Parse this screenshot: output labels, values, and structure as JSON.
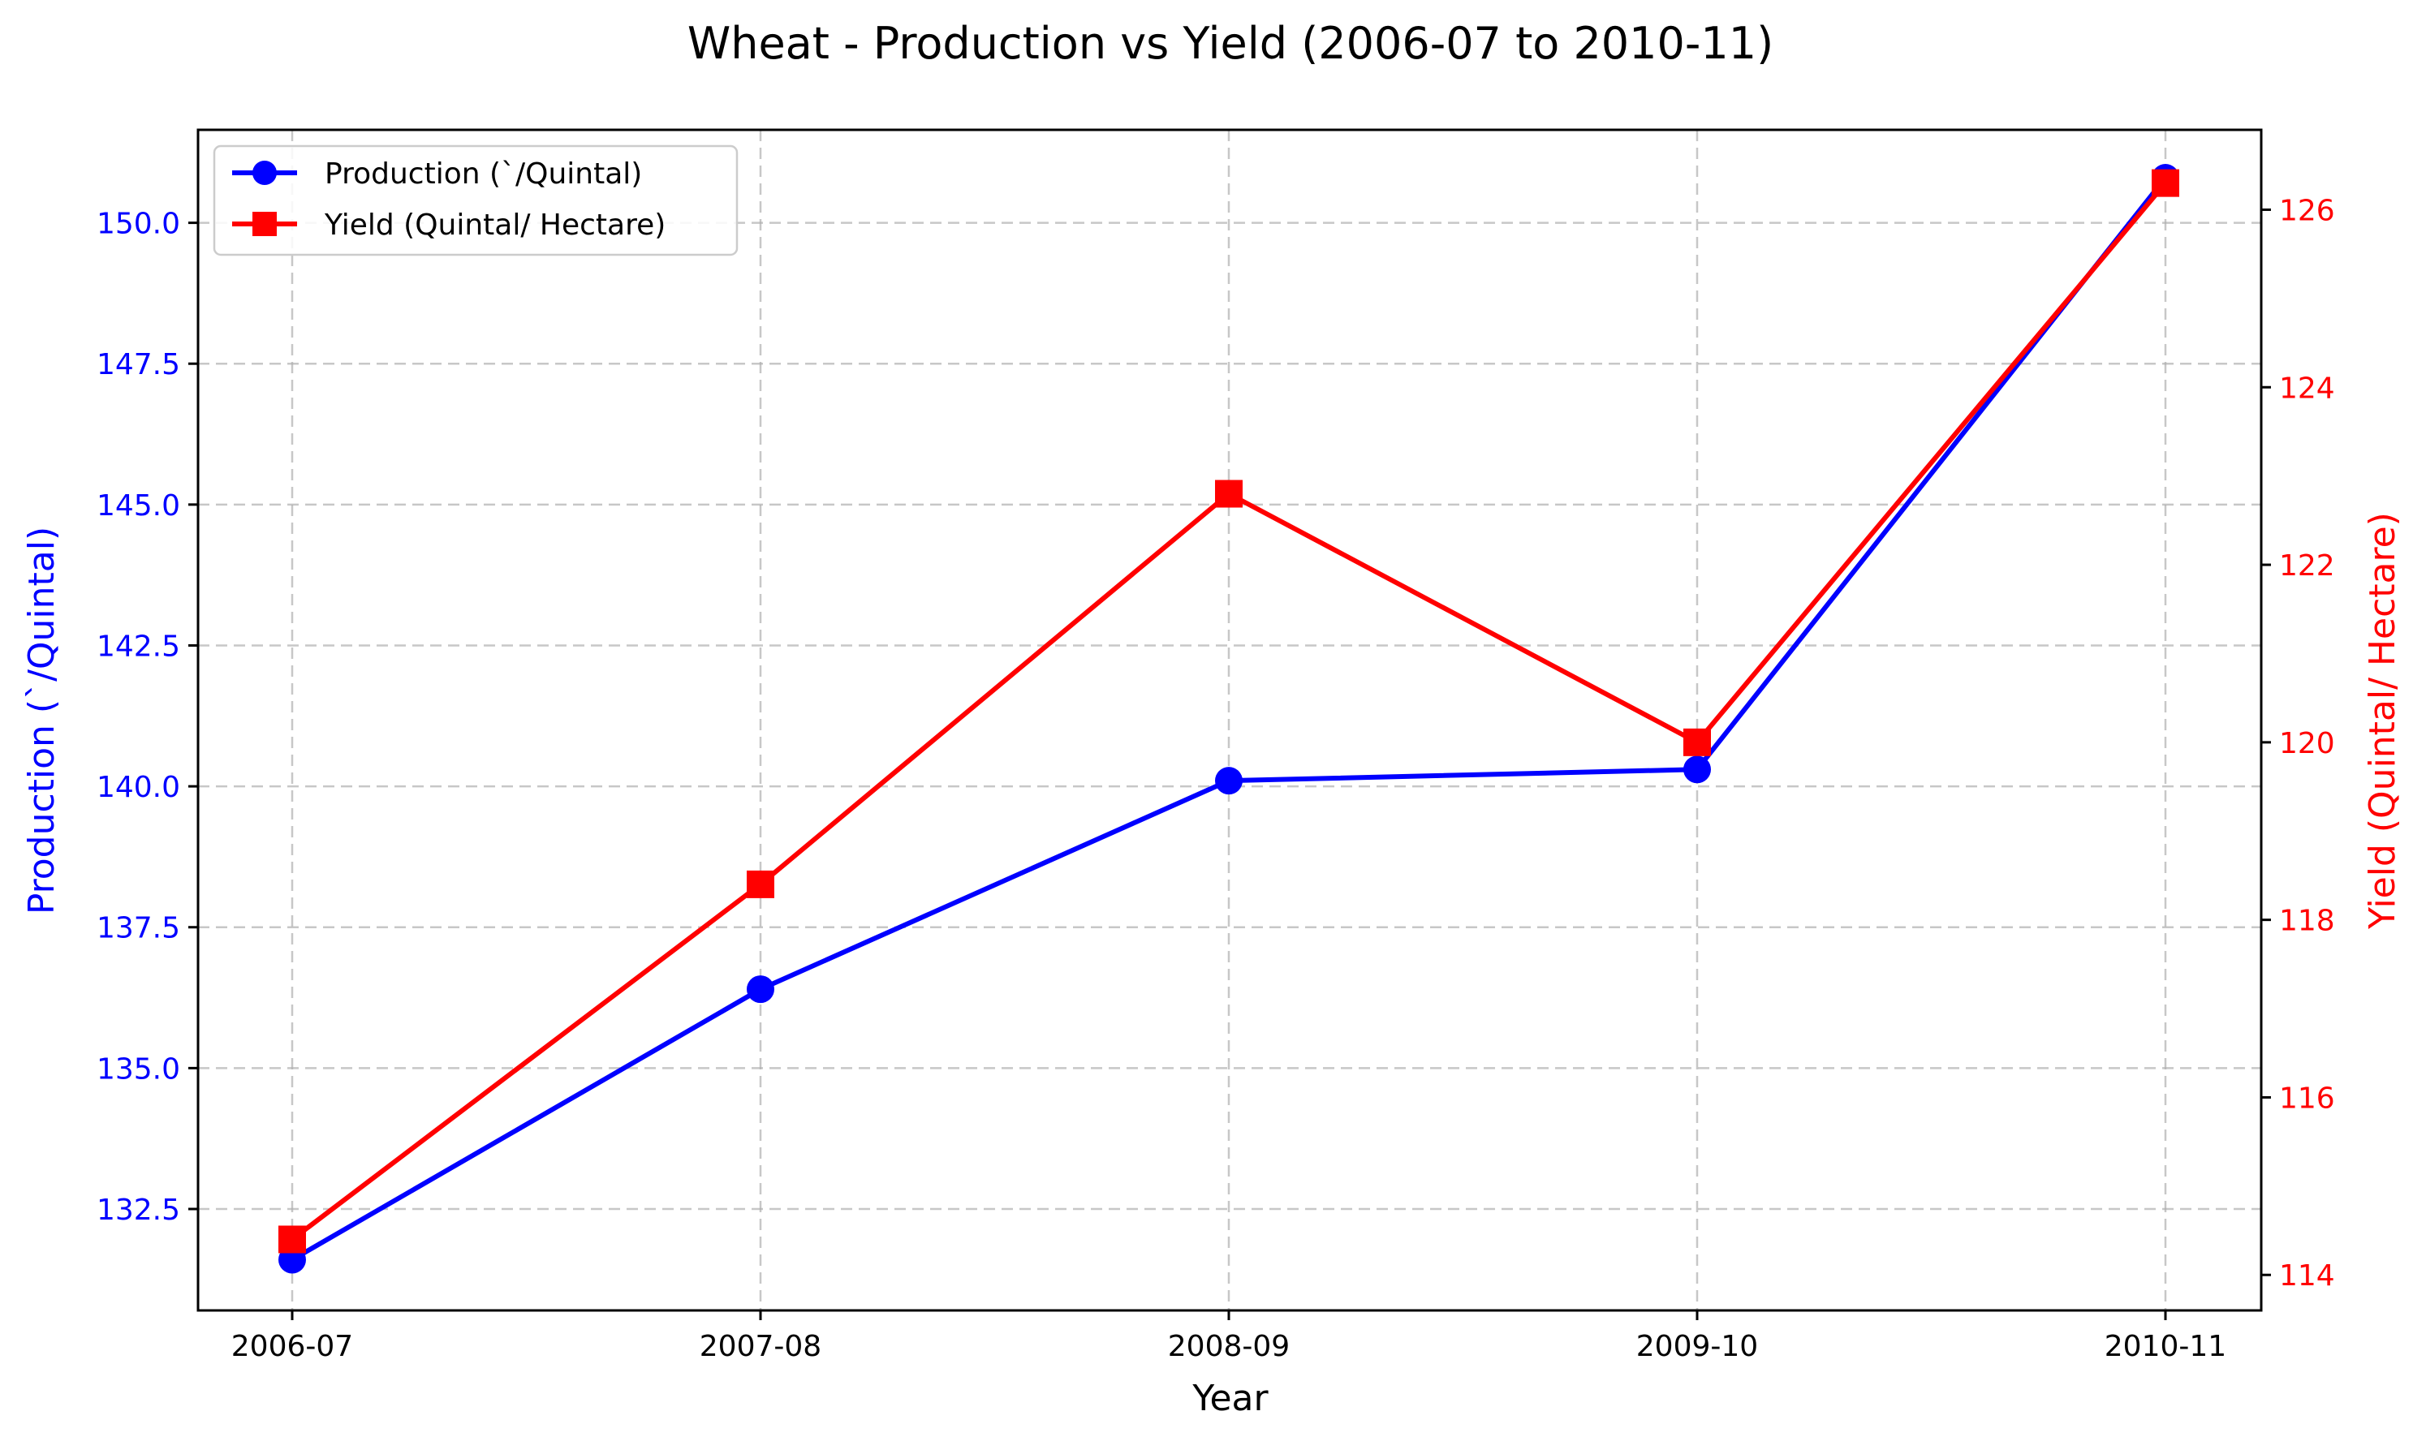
{
  "chart_data": {
    "type": "line",
    "title": "Wheat - Production vs Yield (2006-07 to 2010-11)",
    "xlabel": "Year",
    "ylabel_left": "Production (`/Quintal)",
    "ylabel_right": "Yield (Quintal/ Hectare)",
    "categories": [
      "2006-07",
      "2007-08",
      "2008-09",
      "2009-10",
      "2010-11"
    ],
    "ylim_left": [
      130.7,
      151.65
    ],
    "ylim_right": [
      113.6,
      126.9
    ],
    "yticks_left": [
      "132.5",
      "135.0",
      "137.5",
      "140.0",
      "142.5",
      "145.0",
      "147.5",
      "150.0"
    ],
    "yticks_right": [
      "114",
      "116",
      "118",
      "120",
      "122",
      "124",
      "126"
    ],
    "grid": true,
    "legend_position": "upper-left",
    "series": [
      {
        "name": "Production (`/Quintal)",
        "axis": "left",
        "color": "#0000ff",
        "marker": "circle",
        "values": [
          131.6,
          136.4,
          140.1,
          140.3,
          150.8
        ]
      },
      {
        "name": "Yield (Quintal/ Hectare)",
        "axis": "right",
        "color": "#ff0000",
        "marker": "square",
        "values": [
          114.4,
          118.4,
          122.8,
          120.0,
          126.3
        ]
      }
    ]
  }
}
